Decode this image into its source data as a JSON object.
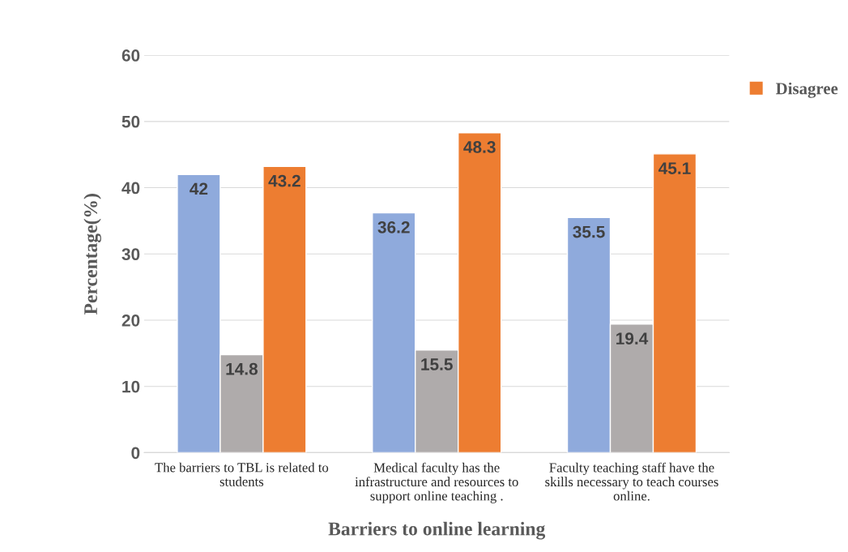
{
  "chart_data": {
    "type": "bar",
    "xlabel": "Barriers to online learning",
    "ylabel": "Percentage(%)",
    "categories": [
      "The barriers to TBL is related to students",
      "Medical faculty has the infrastructure and resources to support online teaching .",
      "Faculty teaching staff have the skills necessary to teach courses online."
    ],
    "series": [
      {
        "color": "#8faadc",
        "values": [
          42,
          36.2,
          35.5
        ]
      },
      {
        "color": "#afabab",
        "values": [
          14.8,
          15.5,
          19.4
        ]
      },
      {
        "name": "Disagree",
        "color": "#ed7d31",
        "values": [
          43.2,
          48.3,
          45.1
        ]
      }
    ],
    "ylim": [
      0,
      60
    ],
    "yticks": [
      0,
      10,
      20,
      30,
      40,
      50,
      60
    ],
    "grid": "y",
    "legend": "right",
    "data_labels": true
  }
}
